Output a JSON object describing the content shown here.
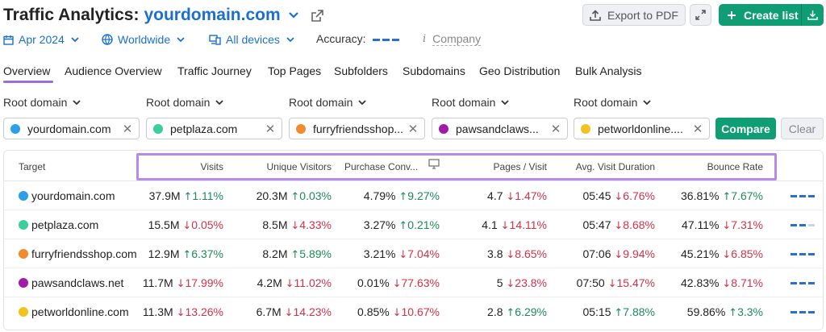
{
  "header": {
    "title_prefix": "Traffic Analytics:",
    "title_domain": "yourdomain.com",
    "export_label": "Export to PDF",
    "create_list_label": "Create list"
  },
  "filters": {
    "date": "Apr 2024",
    "region": "Worldwide",
    "devices": "All devices",
    "accuracy_label": "Accuracy:",
    "company_label": "Company"
  },
  "tabs": [
    {
      "label": "Overview",
      "active": true
    },
    {
      "label": "Audience Overview"
    },
    {
      "label": "Traffic Journey"
    },
    {
      "label": "Top Pages"
    },
    {
      "label": "Subfolders"
    },
    {
      "label": "Subdomains"
    },
    {
      "label": "Geo Distribution"
    },
    {
      "label": "Bulk Analysis"
    }
  ],
  "compare": {
    "root_label": "Root domain",
    "domains": [
      {
        "name": "yourdomain.com",
        "color": "#2d9ee8"
      },
      {
        "name": "petplaza.com",
        "color": "#3ccf9a"
      },
      {
        "name": "furryfriendsshop...",
        "color": "#f28a2e"
      },
      {
        "name": "pawsandclaws...",
        "color": "#a21aa8"
      },
      {
        "name": "petworldonline....",
        "color": "#f4c21f"
      }
    ],
    "compare_label": "Compare",
    "clear_label": "Clear"
  },
  "table": {
    "headers": {
      "target": "Target",
      "visits": "Visits",
      "unique": "Unique Visitors",
      "purchase": "Purchase Conv...",
      "pages": "Pages / Visit",
      "duration": "Avg. Visit Duration",
      "bounce": "Bounce Rate"
    },
    "rows": [
      {
        "domain": "yourdomain.com",
        "color": "#2d9ee8",
        "visits": "37.9M",
        "visits_d": "1.11%",
        "visits_dir": "up",
        "unique": "20.3M",
        "unique_d": "0.03%",
        "unique_dir": "up",
        "purchase": "4.79%",
        "purchase_d": "9.27%",
        "purchase_dir": "up",
        "pages": "4.7",
        "pages_d": "1.47%",
        "pages_dir": "down",
        "duration": "05:45",
        "duration_d": "6.76%",
        "duration_dir": "down",
        "bounce": "36.81%",
        "bounce_d": "7.67%",
        "bounce_dir": "up",
        "accuracy_level": 3
      },
      {
        "domain": "petplaza.com",
        "color": "#3ccf9a",
        "visits": "15.5M",
        "visits_d": "0.05%",
        "visits_dir": "down",
        "unique": "8.5M",
        "unique_d": "4.33%",
        "unique_dir": "down",
        "purchase": "3.27%",
        "purchase_d": "0.21%",
        "purchase_dir": "up",
        "pages": "4.1",
        "pages_d": "14.11%",
        "pages_dir": "down",
        "duration": "05:47",
        "duration_d": "8.68%",
        "duration_dir": "down",
        "bounce": "47.11%",
        "bounce_d": "7.31%",
        "bounce_dir": "down",
        "accuracy_level": 2
      },
      {
        "domain": "furryfriendsshop.com",
        "color": "#f28a2e",
        "visits": "12.9M",
        "visits_d": "6.37%",
        "visits_dir": "up",
        "unique": "8.2M",
        "unique_d": "5.89%",
        "unique_dir": "up",
        "purchase": "3.21%",
        "purchase_d": "7.04%",
        "purchase_dir": "down",
        "pages": "3.8",
        "pages_d": "8.65%",
        "pages_dir": "down",
        "duration": "07:06",
        "duration_d": "9.94%",
        "duration_dir": "down",
        "bounce": "45.21%",
        "bounce_d": "6.85%",
        "bounce_dir": "down",
        "accuracy_level": 3
      },
      {
        "domain": "pawsandclaws.net",
        "color": "#a21aa8",
        "visits": "11.7M",
        "visits_d": "17.99%",
        "visits_dir": "down",
        "unique": "4.2M",
        "unique_d": "11.02%",
        "unique_dir": "down",
        "purchase": "0.01%",
        "purchase_d": "77.63%",
        "purchase_dir": "down",
        "pages": "5",
        "pages_d": "23.8%",
        "pages_dir": "down",
        "duration": "07:50",
        "duration_d": "15.47%",
        "duration_dir": "down",
        "bounce": "42.83%",
        "bounce_d": "8.71%",
        "bounce_dir": "down",
        "accuracy_level": 3
      },
      {
        "domain": "petworldonline.com",
        "color": "#f4c21f",
        "visits": "11.3M",
        "visits_d": "13.26%",
        "visits_dir": "down",
        "unique": "6.7M",
        "unique_d": "14.23%",
        "unique_dir": "down",
        "purchase": "0.85%",
        "purchase_d": "10.67%",
        "purchase_dir": "down",
        "pages": "2.8",
        "pages_d": "6.29%",
        "pages_dir": "up",
        "duration": "05:15",
        "duration_d": "7.88%",
        "duration_dir": "up",
        "bounce": "59.86%",
        "bounce_d": "3.3%",
        "bounce_dir": "up",
        "accuracy_level": 3
      }
    ]
  }
}
